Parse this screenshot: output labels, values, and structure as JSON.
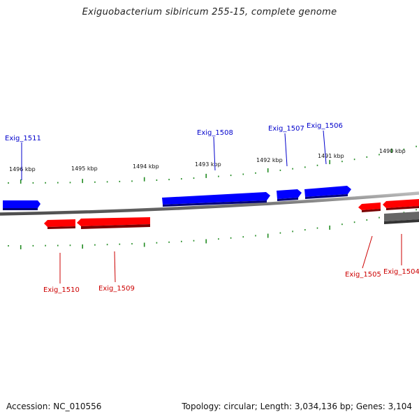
{
  "title": "Exiguobacterium sibiricum 255-15, complete genome",
  "footer": {
    "accession": "Accession: NC_010556",
    "summary": "Topology: circular; Length: 3,034,136 bp; Genes: 3,104"
  },
  "colors": {
    "forward": "#0000ff",
    "reverse": "#ff0000",
    "other": "#666666",
    "backbone": "#808080",
    "tick": "#228b22",
    "forward_label": "#0000cc",
    "reverse_label": "#cc0000"
  },
  "ruler": {
    "unit": "kbp",
    "labels": [
      "1496 kbp",
      "1495 kbp",
      "1494 kbp",
      "1493 kbp",
      "1492 kbp",
      "1491 kbp",
      "1490 kbp"
    ]
  },
  "genes": [
    {
      "name": "",
      "strand": "forward"
    },
    {
      "name": "Exig_1511",
      "strand": "forward"
    },
    {
      "name": "Exig_1508",
      "strand": "forward"
    },
    {
      "name": "Exig_1507",
      "strand": "forward"
    },
    {
      "name": "Exig_1506",
      "strand": "forward"
    },
    {
      "name": "Exig_1510",
      "strand": "reverse"
    },
    {
      "name": "Exig_1509",
      "strand": "reverse"
    },
    {
      "name": "Exig_1505",
      "strand": "reverse"
    },
    {
      "name": "Exig_1504",
      "strand": "reverse"
    },
    {
      "name": "",
      "strand": "other"
    }
  ]
}
